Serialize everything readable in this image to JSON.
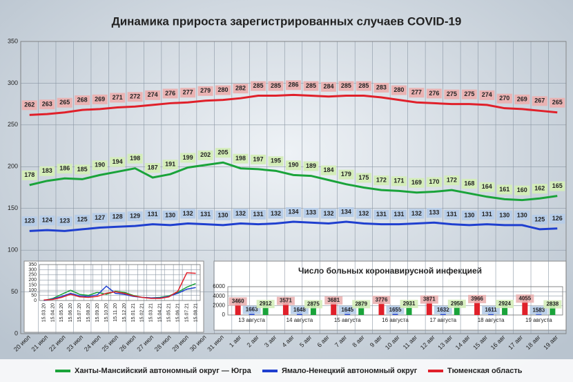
{
  "chart_data": [
    {
      "type": "line",
      "title": "Динамика прироста зарегистрированных случаев COVID-19",
      "categories": [
        "20 июл",
        "21 июл",
        "22 июл",
        "23 июл",
        "24 июл",
        "25 июл",
        "26 июл",
        "27 июл",
        "28 июл",
        "29 июл",
        "30 июл",
        "31 июл",
        "1 авг",
        "2 авг",
        "3 авг",
        "4 авг",
        "5 авг",
        "6 авг",
        "7 авг",
        "8 авг",
        "9 авг",
        "10 авг",
        "11 авг",
        "12 авг",
        "13 авг",
        "14 авг",
        "15 авг",
        "16 авг",
        "17 авг",
        "18 авг",
        "19 авг"
      ],
      "series": [
        {
          "name": "Ханты-Мансийский автономный округ — Югра",
          "color": "#1aa33a",
          "label_color": "#d4edb9",
          "values": [
            178,
            183,
            186,
            185,
            190,
            194,
            198,
            187,
            191,
            199,
            202,
            205,
            198,
            197,
            195,
            190,
            189,
            184,
            179,
            175,
            172,
            171,
            169,
            170,
            172,
            168,
            164,
            161,
            160,
            162,
            165
          ]
        },
        {
          "name": "Ямало-Ненецкий автономный округ",
          "color": "#1f3fcf",
          "label_color": "#b7cde8",
          "values": [
            123,
            124,
            123,
            125,
            127,
            128,
            129,
            131,
            130,
            132,
            131,
            130,
            132,
            131,
            132,
            134,
            133,
            132,
            134,
            132,
            131,
            131,
            132,
            133,
            131,
            130,
            131,
            130,
            130,
            125,
            126
          ]
        },
        {
          "name": "Тюменская область",
          "color": "#e0202a",
          "label_color": "#eab3b3",
          "values": [
            262,
            263,
            265,
            268,
            269,
            271,
            272,
            274,
            276,
            277,
            279,
            280,
            282,
            285,
            285,
            286,
            285,
            284,
            285,
            285,
            283,
            280,
            277,
            276,
            275,
            275,
            274,
            270,
            269,
            267,
            265
          ]
        }
      ],
      "ylim": [
        0,
        350
      ],
      "yticks": [
        0,
        50,
        100,
        150,
        200,
        250,
        300,
        350
      ],
      "grid": true,
      "legend": "bottom"
    },
    {
      "type": "line",
      "categories": [
        "15.03.20",
        "15.04.20",
        "15.05.20",
        "15.06.20",
        "15.07.20",
        "15.08.20",
        "15.09.20",
        "15.10.20",
        "15.11.20",
        "15.12.20",
        "15.01.21",
        "15.02.21",
        "15.03.21",
        "15.04.21",
        "15.05.21",
        "15.06.21",
        "15.07.21",
        "15.08.21"
      ],
      "series": [
        {
          "color": "#1aa33a",
          "values": [
            0,
            20,
            60,
            100,
            60,
            50,
            80,
            60,
            90,
            80,
            50,
            30,
            25,
            30,
            45,
            80,
            130,
            165
          ]
        },
        {
          "color": "#1f3fcf",
          "values": [
            0,
            15,
            40,
            70,
            45,
            40,
            55,
            140,
            70,
            60,
            40,
            30,
            25,
            25,
            40,
            70,
            110,
            126
          ]
        },
        {
          "color": "#e0202a",
          "values": [
            5,
            10,
            30,
            60,
            35,
            30,
            40,
            70,
            85,
            70,
            45,
            30,
            20,
            20,
            35,
            90,
            270,
            265
          ]
        }
      ],
      "ylim": [
        0,
        350
      ],
      "yticks": [
        0,
        50,
        100,
        150,
        200,
        250,
        300,
        350
      ],
      "grid": true
    },
    {
      "type": "bar",
      "title": "Число больных коронавирусной инфекцией",
      "categories": [
        "13 августа",
        "14 августа",
        "15 августа",
        "16 августа",
        "17 августа",
        "18 августа",
        "19 августа"
      ],
      "series": [
        {
          "color": "#e0202a",
          "label_color": "#eab3b3",
          "values": [
            3460,
            3571,
            3681,
            3776,
            3871,
            3966,
            4055
          ]
        },
        {
          "color": "#1f3fcf",
          "label_color": "#b7cde8",
          "values": [
            1663,
            1648,
            1645,
            1655,
            1632,
            1611,
            1583
          ]
        },
        {
          "color": "#1aa33a",
          "label_color": "#d4edb9",
          "values": [
            2912,
            2875,
            2879,
            2931,
            2958,
            2924,
            2838
          ]
        }
      ],
      "ylim": [
        0,
        6000
      ],
      "yticks": [
        0,
        2000,
        4000,
        6000
      ],
      "grid": true
    }
  ]
}
